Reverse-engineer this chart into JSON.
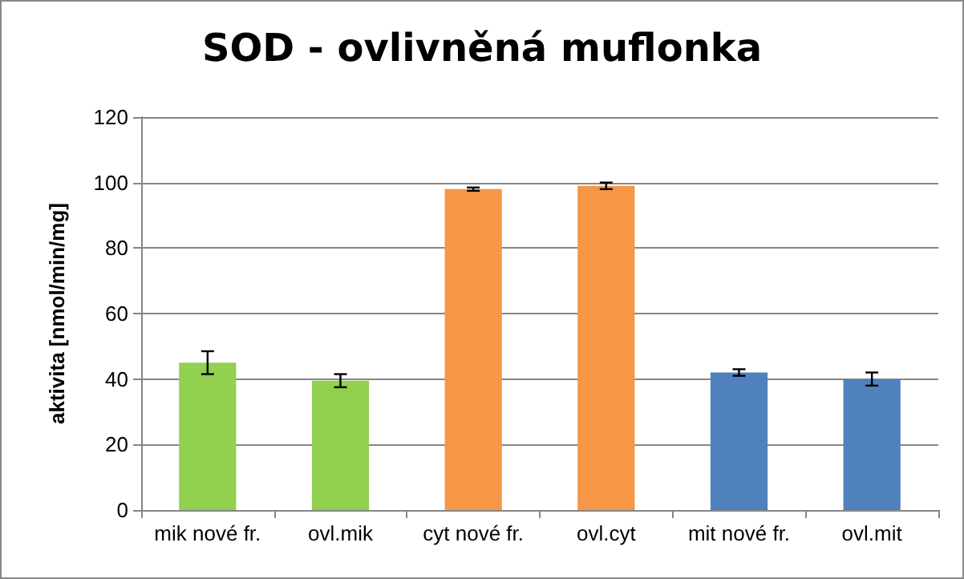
{
  "chart_data": {
    "type": "bar",
    "title": "SOD - ovlivněná muflonka",
    "ylabel": "aktivita [nmol/min/mg]",
    "categories": [
      "mik nové fr.",
      "ovl.mik",
      "cyt nové fr.",
      "ovl.cyt",
      "mit nové fr.",
      "ovl.mit"
    ],
    "values": [
      45,
      39.5,
      98,
      99,
      42,
      40
    ],
    "errors": [
      3.5,
      2,
      0.5,
      1,
      1,
      2
    ],
    "colors": [
      "#92d050",
      "#92d050",
      "#f79646",
      "#f79646",
      "#4f81bd",
      "#4f81bd"
    ],
    "ylim": [
      0,
      120
    ],
    "yticks": [
      0,
      20,
      40,
      60,
      80,
      100,
      120
    ],
    "grid": "y"
  }
}
